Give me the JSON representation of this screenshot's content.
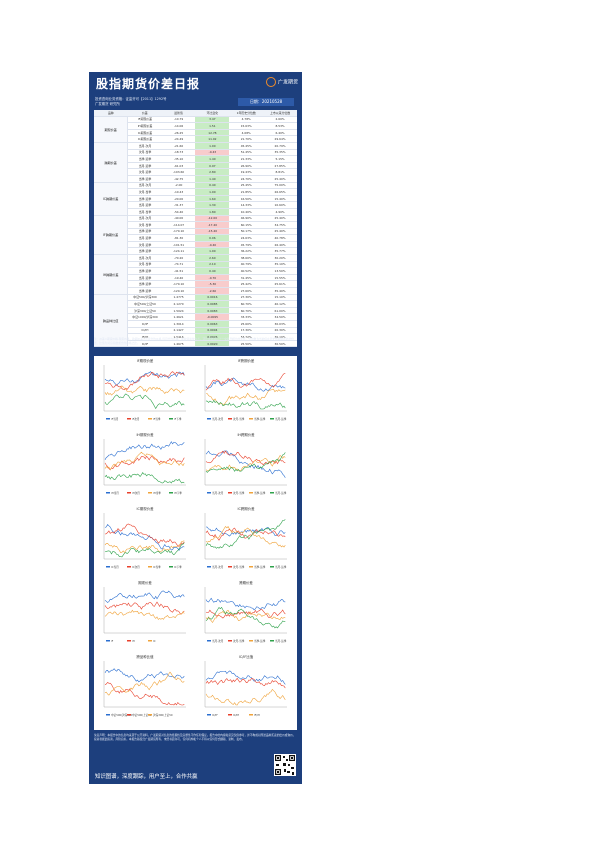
{
  "header": {
    "title": "股指期货价差日报",
    "logo_text": "广发期货",
    "date_label": "日期：",
    "date_value": "20210528"
  },
  "meta": [
    "投资咨询业务资格：证监许可【2011】1292号",
    "广发期货 研究所"
  ],
  "table": {
    "columns": [
      "品种",
      "价差",
      "最新值",
      "环比变化",
      "1年历史分位数",
      "上市以来分位数"
    ],
    "groups": [
      {
        "label": "期现价差",
        "rows": [
          [
            "IF期现价差",
            "-10.79",
            "3.47",
            "4.78%",
            "2.60%"
          ],
          [
            "IH期现价差",
            "-14.06",
            "1.51",
            "15.63%",
            "8.53%"
          ],
          [
            "IC期现价差",
            "-26.25",
            "12.78",
            "4.08%",
            "6.40%"
          ],
          [
            "IC期现价差",
            "-24.49",
            "11.02",
            "21.70%",
            "29.64%"
          ]
        ]
      },
      {
        "label": "跨期价差",
        "rows": [
          [
            "当月-次月",
            "-21.60",
            "1.00",
            "45.45%",
            "20.79%"
          ],
          [
            "次月-当季",
            "-18.73",
            "-0.43",
            "51.45%",
            "35.35%"
          ],
          [
            "当季-远季",
            "-35.10",
            "1.40",
            "21.33%",
            "5.15%"
          ],
          [
            "当月-远季",
            "-61.03",
            "0.97",
            "26.90%",
            "27.85%"
          ],
          [
            "次月-远季",
            "-103.60",
            "2.80",
            "19.43%",
            "8.81%"
          ],
          [
            "当季-远季",
            "-42.75",
            "1.40",
            "24.70%",
            "25.40%"
          ]
        ]
      },
      {
        "label": "IC跨期价差",
        "rows": [
          [
            "当月-次月",
            "-2.00",
            "0.40",
            "25.45%",
            "75.00%"
          ],
          [
            "次月-当季",
            "-10.43",
            "1.00",
            "21.85%",
            "26.65%"
          ],
          [
            "当季-远季",
            "-20.00",
            "1.60",
            "16.50%",
            "15.40%"
          ],
          [
            "当月-远季",
            "-31.37",
            "1.30",
            "14.33%",
            "10.60%"
          ],
          [
            "当月-当季",
            "-54.40",
            "1.80",
            "10.40%",
            "4.90%"
          ]
        ]
      },
      {
        "label": "IF跨期价差",
        "rows": [
          [
            "当月-次月",
            "-40.00",
            "-12.00",
            "46.90%",
            "25.40%"
          ],
          [
            "次月-当季",
            "-114.07",
            "-17.40",
            "60.15%",
            "34.75%"
          ],
          [
            "当季-远季",
            "-170.10",
            "-15.40",
            "50.17%",
            "25.40%"
          ],
          [
            "当月-远季",
            "-81.30",
            "0.06",
            "24.63%",
            "40.78%"
          ],
          [
            "次月-远季",
            "-101.51",
            "-0.40",
            "45.79%",
            "26.40%"
          ],
          [
            "当季-远季",
            "-124.11",
            "1.00",
            "36.22%",
            "35.77%"
          ]
        ]
      },
      {
        "label": "IH跨期价差",
        "rows": [
          [
            "当月-次月",
            "-70.20",
            "2.60",
            "38.60%",
            "30.20%"
          ],
          [
            "次月-当季",
            "-74.71",
            "2.10",
            "40.79%",
            "35.10%"
          ],
          [
            "当季-远季",
            "-41.51",
            "0.40",
            "40.52%",
            "13.50%"
          ],
          [
            "当月-远季",
            "-19.40",
            "-0.70",
            "31.45%",
            "15.55%"
          ],
          [
            "当季-远季",
            "-170.10",
            "-5.30",
            "25.42%",
            "25.61%"
          ],
          [
            "当季-远季",
            "-120.10",
            "-2.60",
            "27.60%",
            "35.40%"
          ]
        ]
      },
      {
        "label": "跨品种比值",
        "rows": [
          [
            "中证500/沪深300",
            "1.4775",
            "0.0016",
            "27.30%",
            "15.10%"
          ],
          [
            "中证500/上证50",
            "2.1270",
            "0.0085",
            "60.70%",
            "40.12%"
          ],
          [
            "沪深300/上证50",
            "1.5024",
            "0.0083",
            "60.70%",
            "61.00%"
          ],
          [
            "中证1000/沪深300",
            "1.4621",
            "-0.0095",
            "33.33%",
            "34.50%"
          ],
          [
            "IC/IF",
            "1.3014",
            "0.0063",
            "25.60%",
            "30.03%"
          ],
          [
            "IC/IH",
            "2.1427",
            "0.0004",
            "17.30%",
            "20.30%"
          ],
          [
            "IF/IH",
            "1.5416",
            "0.0026",
            "53.72%",
            "30.10%"
          ],
          [
            "IC/IF",
            "1.4675",
            "0.0020",
            "25.50%",
            "30.50%"
          ]
        ]
      }
    ]
  },
  "note": "注：价差=期货价格-现货价格，跨期价差=近月合约价格-远月合约价格；最新值单位为点，环比变化为与上一交易日相比的变化，分位数为当前值在历史数据中所处的位置，比值为对应指数或合约价格之比。",
  "charts": [
    {
      "title": "IF期现价差",
      "legend": [
        "IF当月",
        "IF次月",
        "IF当季",
        "IF下季"
      ]
    },
    {
      "title": "IF跨期价差",
      "legend": [
        "当月-次月",
        "次月-当季",
        "当季-远季",
        "当月-远季"
      ]
    },
    {
      "title": "IH期现价差",
      "legend": [
        "IH当月",
        "IH次月",
        "IH当季",
        "IH下季"
      ]
    },
    {
      "title": "IH跨期价差",
      "legend": [
        "当月-次月",
        "次月-当季",
        "当季-远季",
        "当月-远季"
      ]
    },
    {
      "title": "IC期现价差",
      "legend": [
        "IC当月",
        "IC次月",
        "IC当季",
        "IC下季"
      ]
    },
    {
      "title": "IC跨期价差",
      "legend": [
        "当月-次月",
        "次月-当季",
        "当季-远季",
        "当月-远季"
      ]
    },
    {
      "title": "期现价差",
      "legend": [
        "IF",
        "IH",
        "IC"
      ]
    },
    {
      "title": "跨期价差",
      "legend": [
        "当月-次月",
        "次月-当季",
        "当季-远季",
        "当月-远季"
      ]
    },
    {
      "title": "跨品种比值",
      "legend": [
        "中证500/沪深300",
        "中证500/上证50",
        "沪深300/上证50"
      ]
    },
    {
      "title": "IC/IF比值",
      "legend": [
        "IC/IF",
        "IC/IH",
        "IF/IH"
      ]
    }
  ],
  "footer_note": "免责声明：本报告中的信息均来源于公开资料，广发期货对信息的准确性及完整性不作任何保证。报告中的内容和意见仅供参考，并不构成对所述品种买卖的出价或询价，投资者据此投资，风险自担。本报告版权归广发期货所有，未经书面许可，任何机构和个人不得以任何形式翻版、复制、发布。",
  "slogan": "知识图谱，深度跟踪，用户至上，合作共赢",
  "colors": {
    "card": "#1d3f7d",
    "accent": "#f08c2a",
    "green_cell": "#c8ecc4",
    "red_cell": "#f8cccc"
  }
}
